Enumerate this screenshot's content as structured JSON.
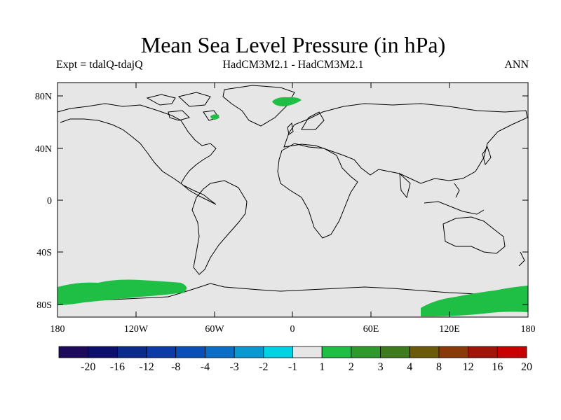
{
  "title": "Mean Sea Level Pressure (in hPa)",
  "subtitle": {
    "left": "Expt = tdalQ-tdajQ",
    "center": "HadCM3M2.1 - HadCM3M2.1",
    "right": "ANN"
  },
  "map": {
    "lat_labels": [
      "80N",
      "40N",
      "0",
      "40S",
      "80S"
    ],
    "lon_labels": [
      "180",
      "120W",
      "60W",
      "0",
      "60E",
      "120E",
      "180"
    ],
    "background_color": "#e6e6e6",
    "anomaly_color": "#1fbf46"
  },
  "colorbar": {
    "labels": [
      "-20",
      "-16",
      "-12",
      "-8",
      "-4",
      "-3",
      "-2",
      "-1",
      "1",
      "2",
      "3",
      "4",
      "8",
      "12",
      "16",
      "20"
    ],
    "colors": [
      "#1e0a5a",
      "#0d0f6e",
      "#0a2a8c",
      "#0c3aa6",
      "#0a4fb8",
      "#0a6ec8",
      "#0a98d2",
      "#00d2e6",
      "#e6e6e6",
      "#1fbf46",
      "#2e9a2e",
      "#3e7a1e",
      "#6a5a0a",
      "#8a3a0a",
      "#a0140a",
      "#c80000"
    ]
  }
}
